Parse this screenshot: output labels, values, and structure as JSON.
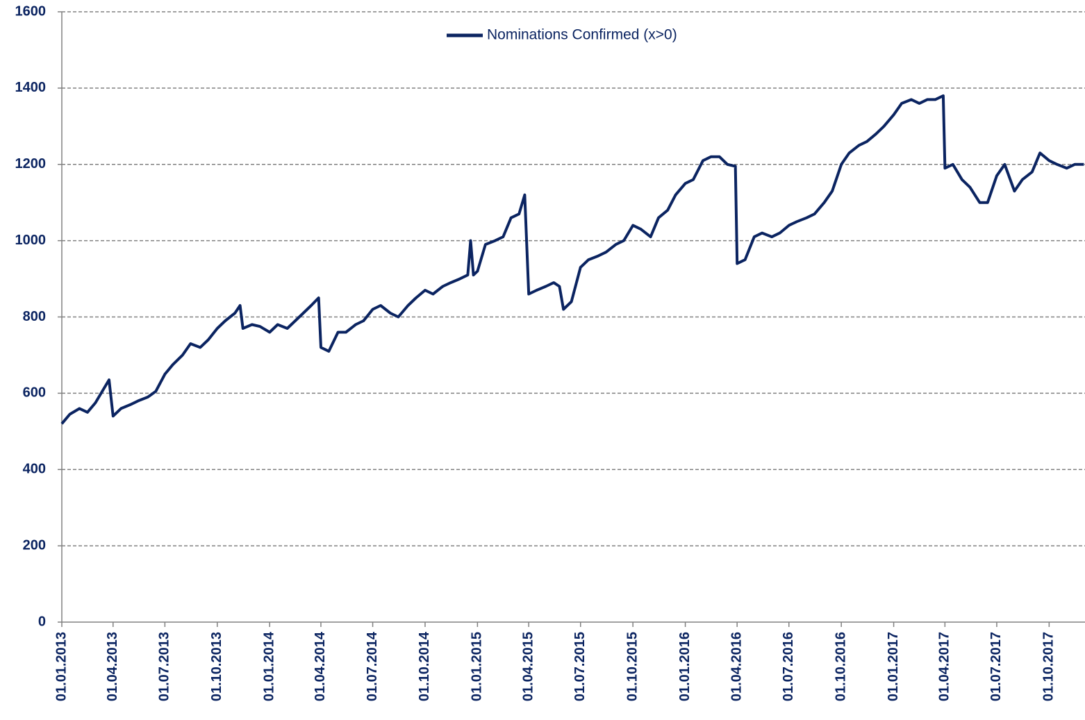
{
  "chart_data": {
    "type": "line",
    "x": [
      "01.01.2013",
      "15.01.2013",
      "01.02.2013",
      "15.02.2013",
      "01.03.2013",
      "15.03.2013",
      "25.03.2013",
      "01.04.2013",
      "15.04.2013",
      "01.05.2013",
      "15.05.2013",
      "01.06.2013",
      "15.06.2013",
      "01.07.2013",
      "15.07.2013",
      "01.08.2013",
      "15.08.2013",
      "01.09.2013",
      "15.09.2013",
      "01.10.2013",
      "15.10.2013",
      "01.11.2013",
      "10.11.2013",
      "15.11.2013",
      "01.12.2013",
      "15.12.2013",
      "01.01.2014",
      "15.01.2014",
      "01.02.2014",
      "15.02.2014",
      "01.03.2014",
      "15.03.2014",
      "28.03.2014",
      "01.04.2014",
      "15.04.2014",
      "01.05.2014",
      "15.05.2014",
      "01.06.2014",
      "15.06.2014",
      "01.07.2014",
      "15.07.2014",
      "01.08.2014",
      "15.08.2014",
      "01.09.2014",
      "15.09.2014",
      "01.10.2014",
      "15.10.2014",
      "01.11.2014",
      "15.11.2014",
      "01.12.2014",
      "15.12.2014",
      "20.12.2014",
      "25.12.2014",
      "01.01.2015",
      "15.01.2015",
      "01.02.2015",
      "15.02.2015",
      "01.03.2015",
      "15.03.2015",
      "25.03.2015",
      "01.04.2015",
      "15.04.2015",
      "01.05.2015",
      "15.05.2015",
      "25.05.2015",
      "01.06.2015",
      "15.06.2015",
      "01.07.2015",
      "15.07.2015",
      "01.08.2015",
      "15.08.2015",
      "01.09.2015",
      "15.09.2015",
      "01.10.2015",
      "15.10.2015",
      "01.11.2015",
      "15.11.2015",
      "01.12.2015",
      "15.12.2015",
      "01.01.2016",
      "15.01.2016",
      "01.02.2016",
      "15.02.2016",
      "01.03.2016",
      "15.03.2016",
      "29.03.2016",
      "01.04.2016",
      "15.04.2016",
      "01.05.2016",
      "15.05.2016",
      "01.06.2016",
      "15.06.2016",
      "01.07.2016",
      "15.07.2016",
      "01.08.2016",
      "15.08.2016",
      "01.09.2016",
      "15.09.2016",
      "01.10.2016",
      "15.10.2016",
      "01.11.2016",
      "15.11.2016",
      "01.12.2016",
      "15.12.2016",
      "01.01.2017",
      "15.01.2017",
      "01.02.2017",
      "15.02.2017",
      "01.03.2017",
      "15.03.2017",
      "29.03.2017",
      "01.04.2017",
      "15.04.2017",
      "01.05.2017",
      "15.05.2017",
      "01.06.2017",
      "15.06.2017",
      "01.07.2017",
      "15.07.2017",
      "01.08.2017",
      "15.08.2017",
      "01.09.2017",
      "15.09.2017",
      "01.10.2017",
      "15.10.2017",
      "01.11.2017",
      "15.11.2017",
      "01.12.2017"
    ],
    "series": [
      {
        "name": "Nominations Confirmed (x>0)",
        "color": "#0b2461",
        "values": [
          520,
          545,
          560,
          550,
          575,
          610,
          635,
          540,
          560,
          570,
          580,
          590,
          605,
          650,
          675,
          700,
          730,
          720,
          740,
          770,
          790,
          810,
          830,
          770,
          780,
          775,
          760,
          780,
          770,
          790,
          810,
          830,
          850,
          720,
          710,
          760,
          760,
          780,
          790,
          820,
          830,
          810,
          800,
          830,
          850,
          870,
          860,
          880,
          890,
          900,
          910,
          1000,
          910,
          920,
          990,
          1000,
          1010,
          1060,
          1070,
          1120,
          860,
          870,
          880,
          890,
          880,
          820,
          840,
          930,
          950,
          960,
          970,
          990,
          1000,
          1040,
          1030,
          1010,
          1060,
          1080,
          1120,
          1150,
          1160,
          1210,
          1220,
          1220,
          1200,
          1195,
          940,
          950,
          1010,
          1020,
          1010,
          1020,
          1040,
          1050,
          1060,
          1070,
          1100,
          1130,
          1200,
          1230,
          1250,
          1260,
          1280,
          1300,
          1330,
          1360,
          1370,
          1360,
          1370,
          1370,
          1380,
          1190,
          1200,
          1160,
          1140,
          1100,
          1100,
          1170,
          1200,
          1130,
          1160,
          1180,
          1230,
          1210,
          1200,
          1190,
          1200,
          1200
        ]
      }
    ],
    "xlim": [
      "01.01.2013",
      "03.12.2017"
    ],
    "xticks": [
      "01.01.2013",
      "01.04.2013",
      "01.07.2013",
      "01.10.2013",
      "01.01.2014",
      "01.04.2014",
      "01.07.2014",
      "01.10.2014",
      "01.01.2015",
      "01.04.2015",
      "01.07.2015",
      "01.10.2015",
      "01.01.2016",
      "01.04.2016",
      "01.07.2016",
      "01.10.2016",
      "01.01.2017",
      "01.04.2017",
      "01.07.2017",
      "01.10.2017"
    ],
    "ylim": [
      0,
      1600
    ],
    "yticks": [
      0,
      200,
      400,
      600,
      800,
      1000,
      1200,
      1400,
      1600
    ],
    "grid": true,
    "legend": "top"
  }
}
